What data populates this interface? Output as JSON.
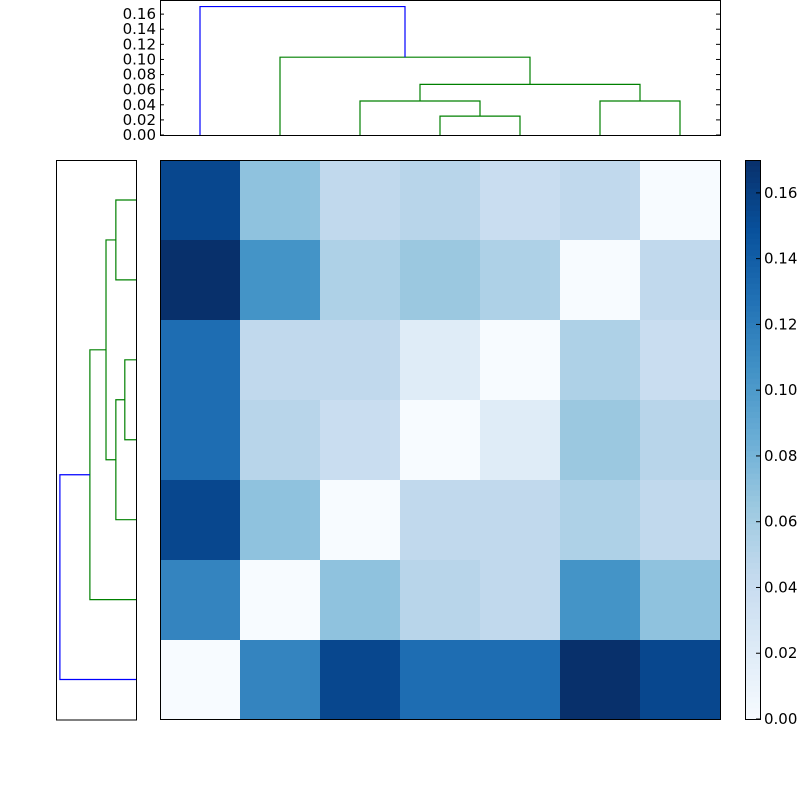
{
  "chart_data": [
    {
      "type": "dendrogram",
      "orientation": "top",
      "ylim": [
        0,
        0.1787
      ],
      "yticks": [
        "0.00",
        "0.02",
        "0.04",
        "0.06",
        "0.08",
        "0.10",
        "0.12",
        "0.14",
        "0.16"
      ],
      "leaf_count": 7,
      "links": [
        {
          "icoord": [
            35,
            35,
            45,
            45
          ],
          "dcoord": [
            0,
            0.025,
            0.025,
            0
          ],
          "color": "#008000"
        },
        {
          "icoord": [
            25,
            25,
            40,
            40
          ],
          "dcoord": [
            0,
            0.045,
            0.045,
            0.025
          ],
          "color": "#008000"
        },
        {
          "icoord": [
            55,
            55,
            65,
            65
          ],
          "dcoord": [
            0,
            0.045,
            0.045,
            0
          ],
          "color": "#008000"
        },
        {
          "icoord": [
            32.5,
            32.5,
            60,
            60
          ],
          "dcoord": [
            0.045,
            0.067,
            0.067,
            0.045
          ],
          "color": "#008000"
        },
        {
          "icoord": [
            15,
            15,
            46.25,
            46.25
          ],
          "dcoord": [
            0,
            0.103,
            0.103,
            0.067
          ],
          "color": "#008000"
        },
        {
          "icoord": [
            5,
            5,
            30.625,
            30.625
          ],
          "dcoord": [
            0,
            0.17,
            0.17,
            0.103
          ],
          "color": "#0000ff"
        }
      ]
    },
    {
      "type": "dendrogram",
      "orientation": "left",
      "xlim": [
        0,
        0.1787
      ],
      "leaf_count": 7,
      "links": [
        {
          "icoord": [
            35,
            35,
            45,
            45
          ],
          "dcoord": [
            0,
            0.025,
            0.025,
            0
          ],
          "color": "#008000"
        },
        {
          "icoord": [
            25,
            25,
            40,
            40
          ],
          "dcoord": [
            0,
            0.045,
            0.045,
            0.025
          ],
          "color": "#008000"
        },
        {
          "icoord": [
            55,
            55,
            65,
            65
          ],
          "dcoord": [
            0,
            0.045,
            0.045,
            0
          ],
          "color": "#008000"
        },
        {
          "icoord": [
            32.5,
            32.5,
            60,
            60
          ],
          "dcoord": [
            0.045,
            0.067,
            0.067,
            0.045
          ],
          "color": "#008000"
        },
        {
          "icoord": [
            15,
            15,
            46.25,
            46.25
          ],
          "dcoord": [
            0,
            0.103,
            0.103,
            0.067
          ],
          "color": "#008000"
        },
        {
          "icoord": [
            5,
            5,
            30.625,
            30.625
          ],
          "dcoord": [
            0,
            0.17,
            0.17,
            0.103
          ],
          "color": "#0000ff"
        }
      ]
    },
    {
      "type": "heatmap",
      "colormap": "Blues",
      "vmin": 0,
      "vmax": 0.17,
      "values": [
        [
          0.155,
          0.07,
          0.045,
          0.05,
          0.04,
          0.045,
          0.0
        ],
        [
          0.17,
          0.105,
          0.055,
          0.065,
          0.055,
          0.0,
          0.045
        ],
        [
          0.13,
          0.045,
          0.045,
          0.02,
          0.0,
          0.055,
          0.04
        ],
        [
          0.13,
          0.05,
          0.04,
          0.0,
          0.02,
          0.065,
          0.05
        ],
        [
          0.155,
          0.07,
          0.0,
          0.045,
          0.045,
          0.055,
          0.045
        ],
        [
          0.115,
          0.0,
          0.07,
          0.05,
          0.045,
          0.105,
          0.07
        ],
        [
          0.0,
          0.115,
          0.155,
          0.13,
          0.13,
          0.17,
          0.155
        ]
      ],
      "colorbar": {
        "ticks": [
          "0.00",
          "0.02",
          "0.04",
          "0.06",
          "0.08",
          "0.10",
          "0.12",
          "0.14",
          "0.16"
        ]
      }
    }
  ]
}
